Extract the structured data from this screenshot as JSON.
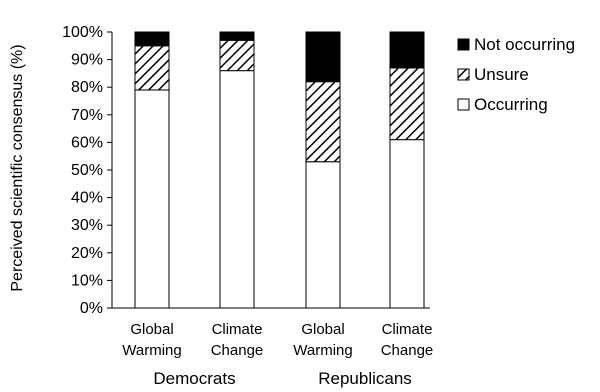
{
  "chart_data": {
    "type": "bar",
    "stacked": true,
    "title": "",
    "ylabel": "Perceived scientific consensus (%)",
    "xlabel": "",
    "ylim": [
      0,
      100
    ],
    "yticks": [
      "0%",
      "10%",
      "20%",
      "30%",
      "40%",
      "50%",
      "60%",
      "70%",
      "80%",
      "90%",
      "100%"
    ],
    "categories": [
      {
        "line1": "Global",
        "line2": "Warming"
      },
      {
        "line1": "Climate",
        "line2": "Change"
      },
      {
        "line1": "Global",
        "line2": "Warming"
      },
      {
        "line1": "Climate",
        "line2": "Change"
      }
    ],
    "groups": [
      {
        "label": "Democrats",
        "members": [
          0,
          1
        ]
      },
      {
        "label": "Republicans",
        "members": [
          2,
          3
        ]
      }
    ],
    "series": [
      {
        "name": "Occurring",
        "values": [
          79,
          86,
          53,
          61
        ],
        "fill": "#ffffff"
      },
      {
        "name": "Unsure",
        "values": [
          16,
          11,
          29,
          26
        ],
        "fill": "hatch"
      },
      {
        "name": "Not occurring",
        "values": [
          5,
          3,
          18,
          13
        ],
        "fill": "#000000"
      }
    ],
    "legend": {
      "placement": "top-right",
      "order": [
        "Not occurring",
        "Unsure",
        "Occurring"
      ]
    },
    "grid": false
  }
}
